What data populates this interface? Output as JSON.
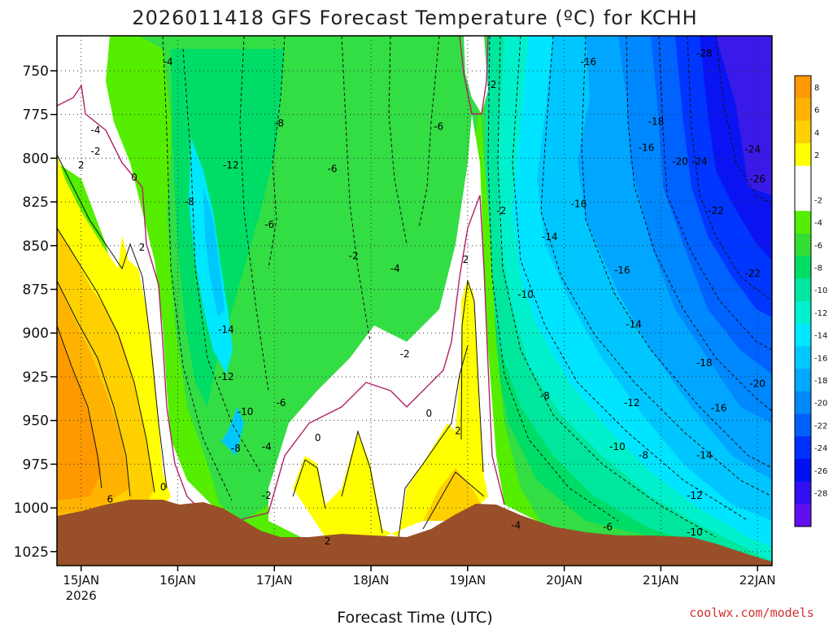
{
  "title": "2026011418 GFS Forecast Temperature (ºC) for KCHH",
  "credit": "coolwx.com/models",
  "chart_data": {
    "type": "heatmap",
    "title": "2026011418 GFS Forecast Temperature (ºC) for KCHH",
    "xlabel": "Forecast Time (UTC)",
    "ylabel": "",
    "x_ticks": [
      {
        "label": "15JAN",
        "sub": "2026",
        "t": 0
      },
      {
        "label": "16JAN",
        "t": 1
      },
      {
        "label": "17JAN",
        "t": 2
      },
      {
        "label": "18JAN",
        "t": 3
      },
      {
        "label": "19JAN",
        "t": 4
      },
      {
        "label": "20JAN",
        "t": 5
      },
      {
        "label": "21JAN",
        "t": 6
      },
      {
        "label": "22JAN",
        "t": 7
      }
    ],
    "x_range_days": [
      -0.25,
      7.15
    ],
    "y_ticks": [
      750,
      775,
      800,
      825,
      850,
      875,
      900,
      925,
      950,
      975,
      1000,
      1025
    ],
    "y_range_hpa": [
      730,
      1033
    ],
    "grid": true,
    "colorbar": {
      "levels": [
        {
          "label": "8",
          "color": "#ff9900"
        },
        {
          "label": "6",
          "color": "#ffb300"
        },
        {
          "label": "4",
          "color": "#ffd000"
        },
        {
          "label": "2",
          "color": "#ffff00"
        },
        {
          "label": "",
          "color": "#ffffff"
        },
        {
          "label": "-2",
          "color": "#ffffff"
        },
        {
          "label": "-4",
          "color": "#55ee00"
        },
        {
          "label": "-6",
          "color": "#33dd33"
        },
        {
          "label": "-8",
          "color": "#00dd66"
        },
        {
          "label": "-10",
          "color": "#00e6a0"
        },
        {
          "label": "-12",
          "color": "#00f0d0"
        },
        {
          "label": "-14",
          "color": "#00e8ff"
        },
        {
          "label": "-16",
          "color": "#00c8ff"
        },
        {
          "label": "-18",
          "color": "#00a8ff"
        },
        {
          "label": "-20",
          "color": "#0088ff"
        },
        {
          "label": "-22",
          "color": "#0060ff"
        },
        {
          "label": "-24",
          "color": "#0030ff"
        },
        {
          "label": "-26",
          "color": "#0010f0"
        },
        {
          "label": "-28",
          "color": "#3010f0"
        },
        {
          "label": "",
          "color": "#6010f0"
        }
      ]
    },
    "temperature_samples_by_day": [
      {
        "t": 0.0,
        "levels_hpa": [
          740,
          800,
          850,
          900,
          950,
          1000
        ],
        "temps_c": [
          -2,
          2,
          4,
          6,
          6,
          8
        ]
      },
      {
        "t": 0.5,
        "levels_hpa": [
          740,
          800,
          850,
          900,
          950,
          990
        ],
        "temps_c": [
          -2,
          0,
          2,
          2,
          4,
          4
        ]
      },
      {
        "t": 1.0,
        "levels_hpa": [
          740,
          800,
          850,
          900,
          950,
          990
        ],
        "temps_c": [
          -4,
          -6,
          -8,
          -8,
          -6,
          0
        ]
      },
      {
        "t": 1.5,
        "levels_hpa": [
          740,
          800,
          850,
          900,
          950,
          995
        ],
        "temps_c": [
          -6,
          -10,
          -12,
          -14,
          -10,
          -6
        ]
      },
      {
        "t": 2.0,
        "levels_hpa": [
          740,
          800,
          850,
          900,
          950,
          1010
        ],
        "temps_c": [
          -6,
          -8,
          -6,
          -4,
          -4,
          -2
        ]
      },
      {
        "t": 2.5,
        "levels_hpa": [
          740,
          800,
          850,
          900,
          950,
          1010
        ],
        "temps_c": [
          -4,
          -6,
          -6,
          -2,
          0,
          2
        ]
      },
      {
        "t": 3.0,
        "levels_hpa": [
          740,
          800,
          850,
          900,
          950,
          1010
        ],
        "temps_c": [
          -4,
          -6,
          -4,
          -2,
          0,
          2
        ]
      },
      {
        "t": 3.5,
        "levels_hpa": [
          740,
          800,
          850,
          900,
          950,
          1010
        ],
        "temps_c": [
          -4,
          -6,
          -4,
          -2,
          0,
          -2
        ]
      },
      {
        "t": 4.0,
        "levels_hpa": [
          740,
          800,
          850,
          900,
          950,
          1000
        ],
        "temps_c": [
          -2,
          0,
          -2,
          2,
          2,
          2
        ]
      },
      {
        "t": 4.5,
        "levels_hpa": [
          740,
          800,
          850,
          900,
          950,
          1005
        ],
        "temps_c": [
          -14,
          -12,
          -10,
          -8,
          -6,
          -4
        ]
      },
      {
        "t": 5.0,
        "levels_hpa": [
          740,
          800,
          850,
          900,
          950,
          1010
        ],
        "temps_c": [
          -16,
          -16,
          -14,
          -10,
          -8,
          -6
        ]
      },
      {
        "t": 6.0,
        "levels_hpa": [
          740,
          800,
          850,
          900,
          950,
          1015
        ],
        "temps_c": [
          -20,
          -20,
          -16,
          -14,
          -12,
          -10
        ]
      },
      {
        "t": 7.0,
        "levels_hpa": [
          740,
          800,
          850,
          900,
          950,
          1020
        ],
        "temps_c": [
          -28,
          -24,
          -22,
          -20,
          -16,
          -14
        ]
      }
    ],
    "contour_labels": [
      {
        "v": "-4",
        "t": 0.9,
        "p": 745
      },
      {
        "v": "-16",
        "t": 5.25,
        "p": 745
      },
      {
        "v": "-28",
        "t": 6.45,
        "p": 740
      },
      {
        "v": "-4",
        "t": 0.15,
        "p": 784
      },
      {
        "v": "-2",
        "t": 0.15,
        "p": 796
      },
      {
        "v": "2",
        "t": 0.0,
        "p": 804
      },
      {
        "v": "0",
        "t": 0.55,
        "p": 811
      },
      {
        "v": "-2",
        "t": 4.25,
        "p": 758
      },
      {
        "v": "-8",
        "t": 2.05,
        "p": 780
      },
      {
        "v": "-6",
        "t": 3.7,
        "p": 782
      },
      {
        "v": "-18",
        "t": 5.95,
        "p": 779
      },
      {
        "v": "-16",
        "t": 5.85,
        "p": 794
      },
      {
        "v": "-12",
        "t": 1.55,
        "p": 804
      },
      {
        "v": "-6",
        "t": 2.6,
        "p": 806
      },
      {
        "v": "-20",
        "t": 6.2,
        "p": 802
      },
      {
        "v": "-24",
        "t": 6.4,
        "p": 802
      },
      {
        "v": "-24",
        "t": 6.95,
        "p": 795
      },
      {
        "v": "-26",
        "t": 7.0,
        "p": 812
      },
      {
        "v": "-8",
        "t": 1.12,
        "p": 825
      },
      {
        "v": "-16",
        "t": 5.15,
        "p": 826
      },
      {
        "v": "-22",
        "t": 6.57,
        "p": 830
      },
      {
        "v": "-2",
        "t": 4.35,
        "p": 830
      },
      {
        "v": "-6",
        "t": 1.95,
        "p": 838
      },
      {
        "v": "-14",
        "t": 4.85,
        "p": 845
      },
      {
        "v": "2",
        "t": 0.63,
        "p": 851
      },
      {
        "v": "-2",
        "t": 2.82,
        "p": 856
      },
      {
        "v": "2",
        "t": 3.98,
        "p": 858
      },
      {
        "v": "-4",
        "t": 3.25,
        "p": 863
      },
      {
        "v": "-16",
        "t": 5.6,
        "p": 864
      },
      {
        "v": "-22",
        "t": 6.95,
        "p": 866
      },
      {
        "v": "-10",
        "t": 4.6,
        "p": 878
      },
      {
        "v": "-14",
        "t": 1.5,
        "p": 898
      },
      {
        "v": "-14",
        "t": 5.72,
        "p": 895
      },
      {
        "v": "-2",
        "t": 3.35,
        "p": 912
      },
      {
        "v": "-18",
        "t": 6.45,
        "p": 917
      },
      {
        "v": "-12",
        "t": 1.5,
        "p": 925
      },
      {
        "v": "-20",
        "t": 7.0,
        "p": 929
      },
      {
        "v": "-8",
        "t": 4.8,
        "p": 936
      },
      {
        "v": "-12",
        "t": 5.7,
        "p": 940
      },
      {
        "v": "-16",
        "t": 6.6,
        "p": 943
      },
      {
        "v": "-6",
        "t": 2.07,
        "p": 940
      },
      {
        "v": "-10",
        "t": 1.7,
        "p": 945
      },
      {
        "v": "0",
        "t": 3.6,
        "p": 946
      },
      {
        "v": "-4",
        "t": 1.92,
        "p": 965
      },
      {
        "v": "-8",
        "t": 1.6,
        "p": 966
      },
      {
        "v": "0",
        "t": 2.45,
        "p": 960
      },
      {
        "v": "2",
        "t": 3.9,
        "p": 956
      },
      {
        "v": "-10",
        "t": 5.55,
        "p": 965
      },
      {
        "v": "-8",
        "t": 5.82,
        "p": 970
      },
      {
        "v": "-14",
        "t": 6.45,
        "p": 970
      },
      {
        "v": "0",
        "t": 0.85,
        "p": 988
      },
      {
        "v": "-2",
        "t": 1.92,
        "p": 993
      },
      {
        "v": "-12",
        "t": 6.35,
        "p": 993
      },
      {
        "v": "6",
        "t": 0.3,
        "p": 995
      },
      {
        "v": "-4",
        "t": 4.5,
        "p": 1010
      },
      {
        "v": "-6",
        "t": 5.45,
        "p": 1011
      },
      {
        "v": "-10",
        "t": 6.35,
        "p": 1014
      },
      {
        "v": "2",
        "t": 2.55,
        "p": 1019
      }
    ]
  }
}
